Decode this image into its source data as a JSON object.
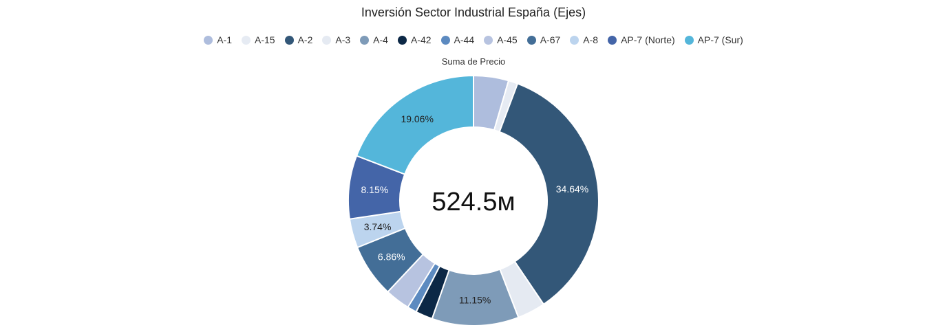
{
  "chart_data": {
    "type": "pie",
    "style": "donut",
    "title": "Inversión Sector Industrial España (Ejes)",
    "measure_label": "Suma de Precio",
    "center_total": "524.5м",
    "legend_position": "top-center",
    "slices": [
      {
        "name": "A-1",
        "percent": 4.5,
        "color": "#aebddd",
        "label": "",
        "label_color": "#222222"
      },
      {
        "name": "A-15",
        "percent": 1.2,
        "color": "#e6ebf3",
        "label": "",
        "label_color": "#222222"
      },
      {
        "name": "A-2",
        "percent": 34.64,
        "color": "#335778",
        "label": "34.64%",
        "label_color": "#ffffff"
      },
      {
        "name": "A-3",
        "percent": 3.6,
        "color": "#e5eaf2",
        "label": "",
        "label_color": "#222222"
      },
      {
        "name": "A-4",
        "percent": 11.15,
        "color": "#7e9bb8",
        "label": "11.15%",
        "label_color": "#222222"
      },
      {
        "name": "A-42",
        "percent": 2.2,
        "color": "#0c2846",
        "label": "",
        "label_color": "#ffffff"
      },
      {
        "name": "A-44",
        "percent": 1.2,
        "color": "#5c8ac0",
        "label": "",
        "label_color": "#ffffff"
      },
      {
        "name": "A-45",
        "percent": 3.2,
        "color": "#b7c3e0",
        "label": "",
        "label_color": "#222222"
      },
      {
        "name": "A-67",
        "percent": 6.86,
        "color": "#436e97",
        "label": "6.86%",
        "label_color": "#ffffff"
      },
      {
        "name": "A-8",
        "percent": 3.74,
        "color": "#bcd4ee",
        "label": "3.74%",
        "label_color": "#222222"
      },
      {
        "name": "AP-7 (Norte)",
        "percent": 8.15,
        "color": "#4465a8",
        "label": "8.15%",
        "label_color": "#ffffff"
      },
      {
        "name": "AP-7 (Sur)",
        "percent": 19.06,
        "color": "#54b6da",
        "label": "19.06%",
        "label_color": "#222222"
      }
    ]
  }
}
